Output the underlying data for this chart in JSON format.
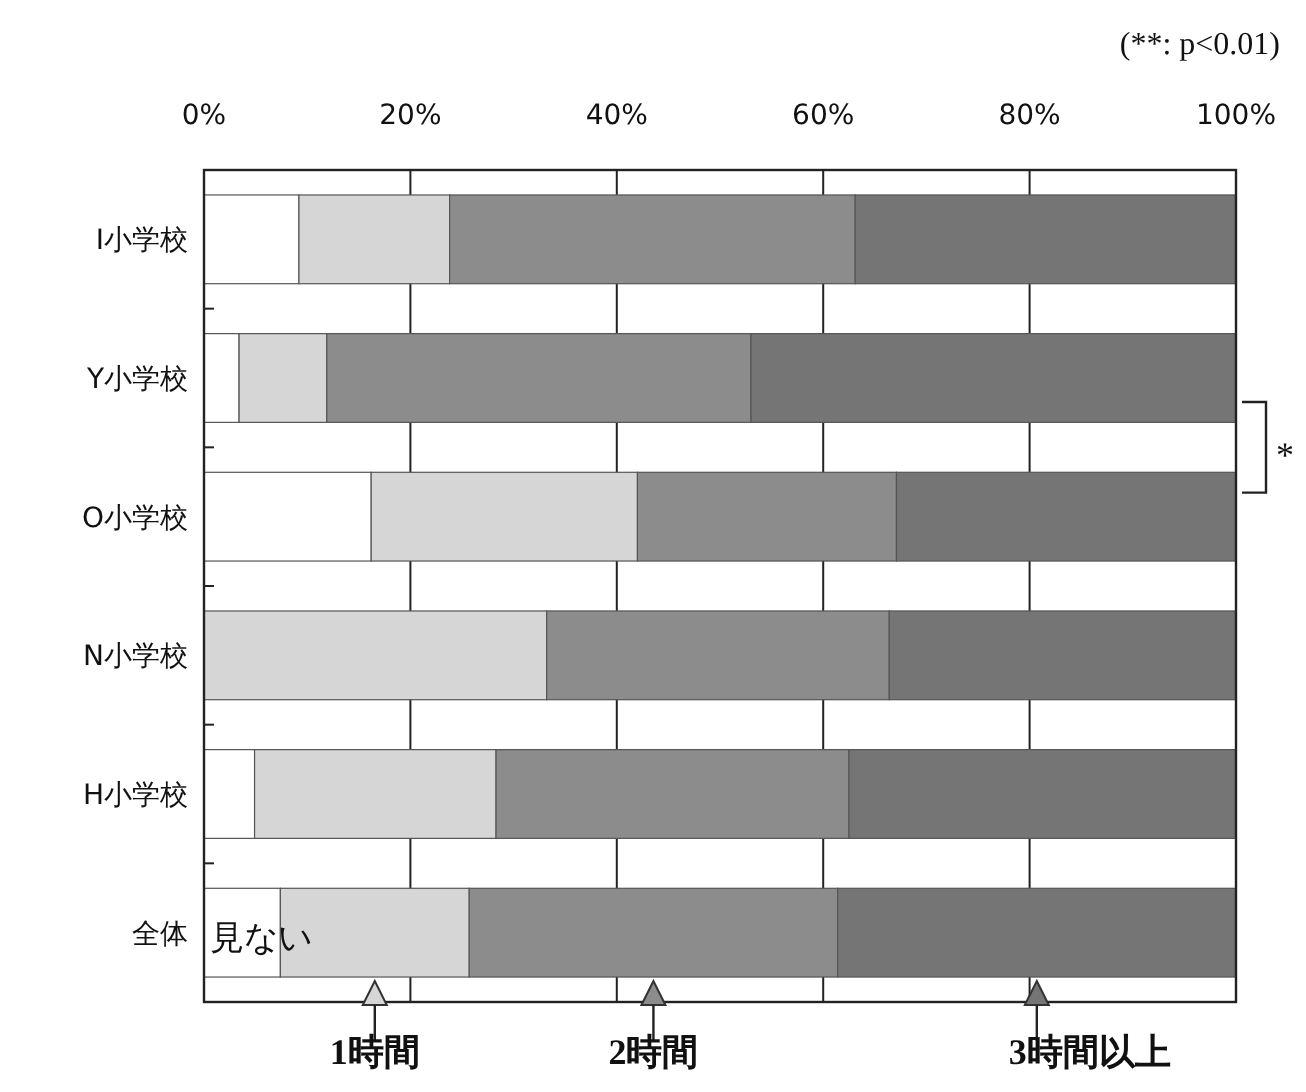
{
  "chart_data": {
    "type": "bar",
    "orientation": "horizontal",
    "stacked": true,
    "categories": [
      "I小学校",
      "Y小学校",
      "O小学校",
      "N小学校",
      "H小学校",
      "全体"
    ],
    "series": [
      {
        "name": "見ない",
        "color": "#ffffff",
        "values": [
          9.2,
          3.4,
          16.2,
          0,
          4.9,
          7.4
        ]
      },
      {
        "name": "1時間",
        "color": "#d6d6d6",
        "values": [
          14.6,
          8.5,
          25.8,
          33.2,
          23.4,
          18.3
        ]
      },
      {
        "name": "2時間",
        "color": "#8c8c8c",
        "values": [
          39.3,
          41.1,
          25.1,
          33.2,
          34.2,
          35.7
        ]
      },
      {
        "name": "3時間以上",
        "color": "#757575",
        "values": [
          36.9,
          47.0,
          32.9,
          33.6,
          37.5,
          38.6
        ]
      }
    ],
    "xlim": [
      0,
      100
    ],
    "xticks": [
      {
        "value": 0,
        "label": "0%"
      },
      {
        "value": 20,
        "label": "20%"
      },
      {
        "value": 40,
        "label": "40%"
      },
      {
        "value": 60,
        "label": "60%"
      },
      {
        "value": 80,
        "label": "80%"
      },
      {
        "value": 100,
        "label": "100%"
      }
    ],
    "grid": "x",
    "legend": "bottom",
    "annotations": [
      "(**: p<0.01)",
      "*"
    ]
  }
}
